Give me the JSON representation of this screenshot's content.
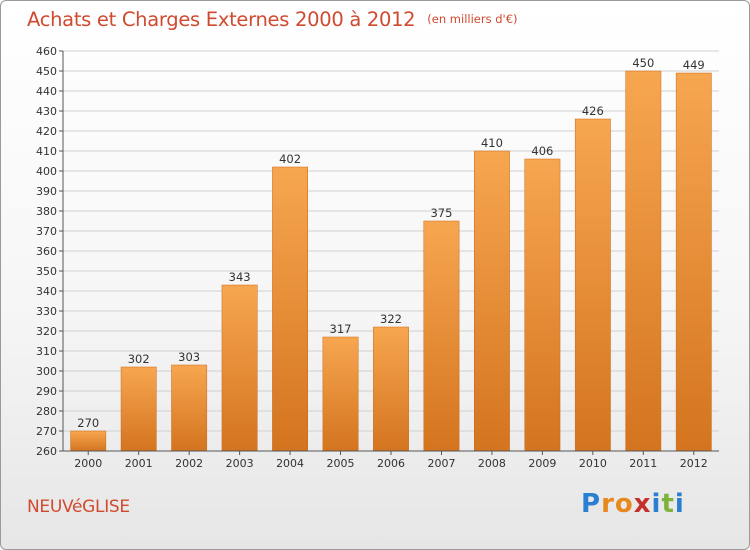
{
  "header": {
    "title": "Achats et Charges Externes 2000 à 2012",
    "unit": "(en milliers d'€)"
  },
  "footer": {
    "commune": "NEUVéGLISE",
    "logo_letters": [
      "P",
      "r",
      "o",
      "x",
      "i",
      "t",
      "i"
    ],
    "logo_colors": [
      "#2a7fd0",
      "#e8891e",
      "#e8891e",
      "#c5302a",
      "#2a7fd0",
      "#7db33a",
      "#2a7fd0"
    ]
  },
  "colors": {
    "bar_top": "#f7a650",
    "bar_bottom": "#d4741f",
    "grid": "#d0d0d0",
    "title": "#d04a2f"
  },
  "chart_data": {
    "type": "bar",
    "title": "Achats et Charges Externes 2000 à 2012",
    "categories": [
      "2000",
      "2001",
      "2002",
      "2003",
      "2004",
      "2005",
      "2006",
      "2007",
      "2008",
      "2009",
      "2010",
      "2011",
      "2012"
    ],
    "values": [
      270,
      302,
      303,
      343,
      402,
      317,
      322,
      375,
      410,
      406,
      426,
      450,
      449
    ],
    "xlabel": "",
    "ylabel": "",
    "ylim": [
      260,
      460
    ],
    "ytick_step": 10,
    "grid": true,
    "legend": "none"
  }
}
